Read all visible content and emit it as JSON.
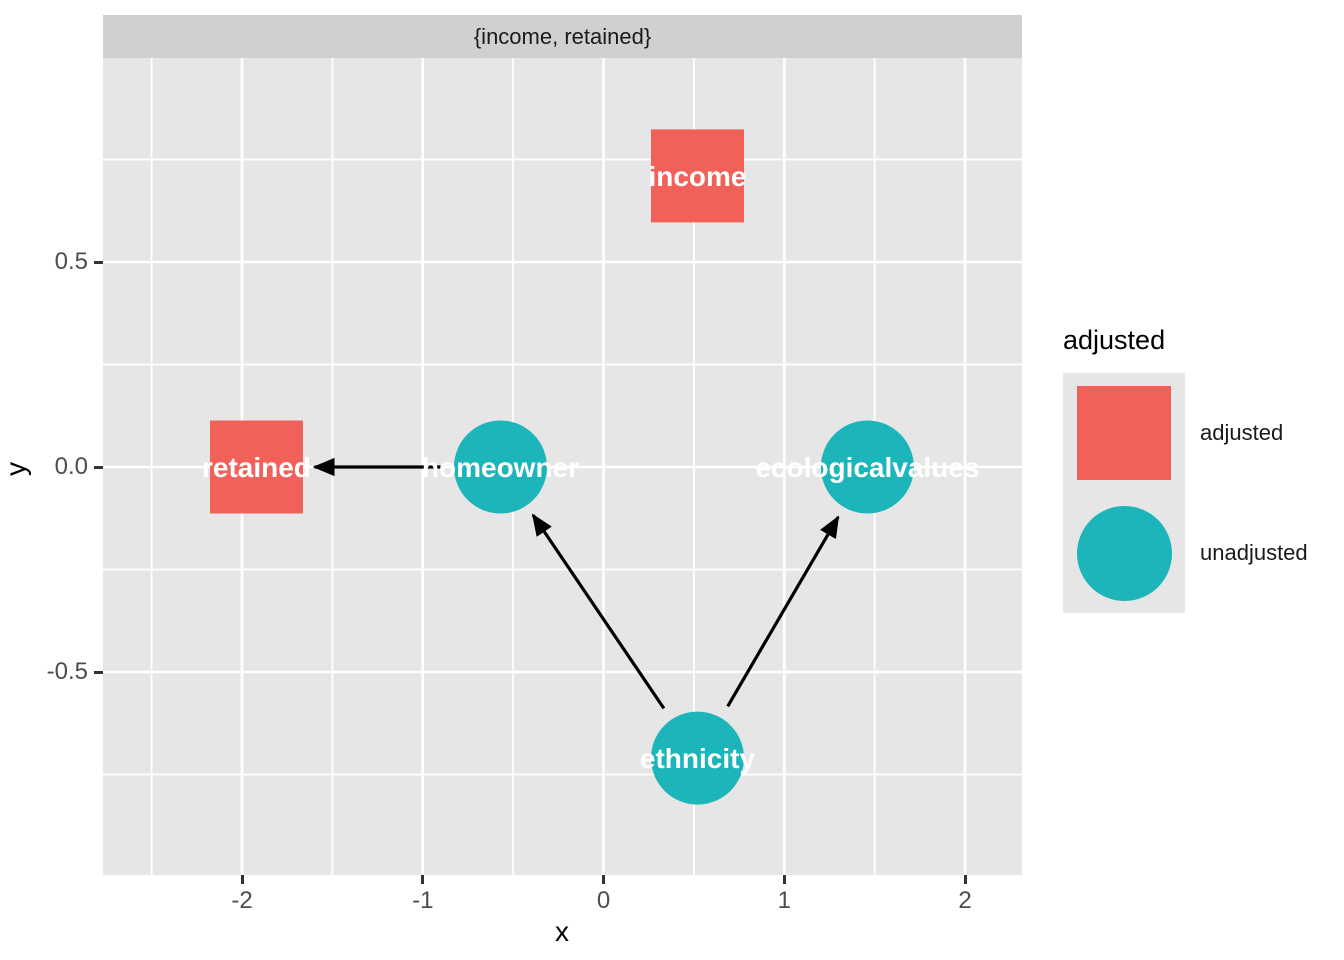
{
  "figure": {
    "facet_title": "{income, retained}",
    "x_axis_title": "x",
    "y_axis_title": "y"
  },
  "legend": {
    "title": "adjusted",
    "entries": [
      {
        "label": "adjusted",
        "shape": "square",
        "color": "#f1615a"
      },
      {
        "label": "unadjusted",
        "shape": "circle",
        "color": "#1cb5ba"
      }
    ]
  },
  "chart_data": {
    "type": "scatter",
    "subtype": "dag-node-plot",
    "title": "{income, retained}",
    "xlabel": "x",
    "ylabel": "y",
    "xlim": [
      -2.77,
      2.32
    ],
    "ylim": [
      -1.0,
      1.0
    ],
    "grid": true,
    "legend_position": "right",
    "x_ticks": [
      {
        "value": -2,
        "label": "-2"
      },
      {
        "value": -1,
        "label": "-1"
      },
      {
        "value": 0,
        "label": "0"
      },
      {
        "value": 1,
        "label": "1"
      },
      {
        "value": 2,
        "label": "2"
      }
    ],
    "y_ticks": [
      {
        "value": 0.5,
        "label": "0.5"
      },
      {
        "value": 0.0,
        "label": "0.0"
      },
      {
        "value": -0.5,
        "label": "-0.5"
      }
    ],
    "nodes": [
      {
        "name": "income",
        "x": 0.52,
        "y": 0.71,
        "status": "adjusted",
        "shape": "square"
      },
      {
        "name": "retained",
        "x": -1.92,
        "y": 0.0,
        "status": "adjusted",
        "shape": "square"
      },
      {
        "name": "homeowner",
        "x": -0.57,
        "y": 0.0,
        "status": "unadjusted",
        "shape": "circle"
      },
      {
        "name": "ecologicalvalues",
        "x": 1.46,
        "y": 0.0,
        "status": "unadjusted",
        "shape": "circle"
      },
      {
        "name": "ethnicity",
        "x": 0.52,
        "y": -0.71,
        "status": "unadjusted",
        "shape": "circle"
      }
    ],
    "edges": [
      {
        "from": "homeowner",
        "to": "retained"
      },
      {
        "from": "ethnicity",
        "to": "homeowner"
      },
      {
        "from": "ethnicity",
        "to": "ecologicalvalues"
      }
    ],
    "colors": {
      "adjusted": "#f1615a",
      "unadjusted": "#1cb5ba",
      "node_label": "#ffffff",
      "edge": "#000000",
      "panel_background": "#e6e6e6",
      "strip_background": "#d0d0d0",
      "gridline": "#ffffff",
      "tick_label": "#4d4d4d"
    }
  }
}
